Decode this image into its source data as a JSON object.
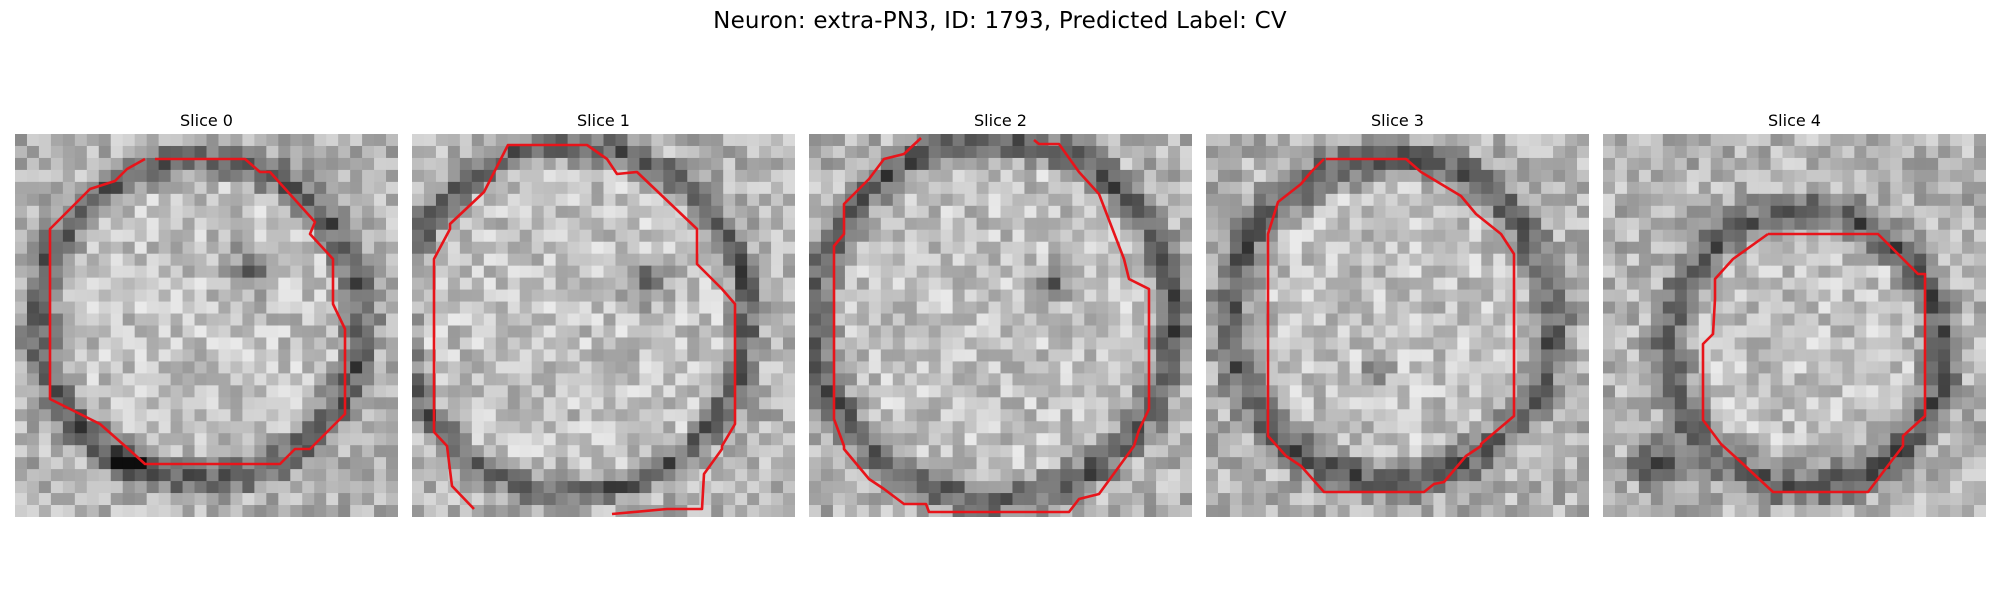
{
  "figure": {
    "title": "Neuron: extra-PN3, ID: 1793, Predicted Label: CV"
  },
  "panels": [
    {
      "label": "Slice 0",
      "description": "grayscale EM tile with red contour outlining a cell body"
    },
    {
      "label": "Slice 1",
      "description": "grayscale EM tile with red contour outlining a cell body"
    },
    {
      "label": "Slice 2",
      "description": "grayscale EM tile with red contour outlining a cell body"
    },
    {
      "label": "Slice 3",
      "description": "grayscale EM tile with red contour outlining a cell body"
    },
    {
      "label": "Slice 4",
      "description": "grayscale EM tile with red contour outlining a cell body"
    }
  ],
  "colors": {
    "contour": "#e8141a",
    "background": "#ffffff"
  }
}
